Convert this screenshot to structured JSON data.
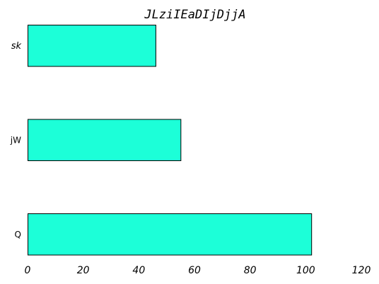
{
  "chart_data": {
    "type": "bar",
    "orientation": "horizontal",
    "title": "JLziIEaDIjDjjA",
    "xlabel": "",
    "ylabel": "",
    "categories": [
      "sk",
      "jW",
      "Q"
    ],
    "values": [
      46,
      55,
      102
    ],
    "xlim": [
      0,
      120
    ],
    "xticks": [
      0,
      20,
      40,
      60,
      80,
      100,
      120
    ],
    "grid": false,
    "legend": "none",
    "bar_color": "#1cffd8",
    "edge_color": "#000000"
  }
}
